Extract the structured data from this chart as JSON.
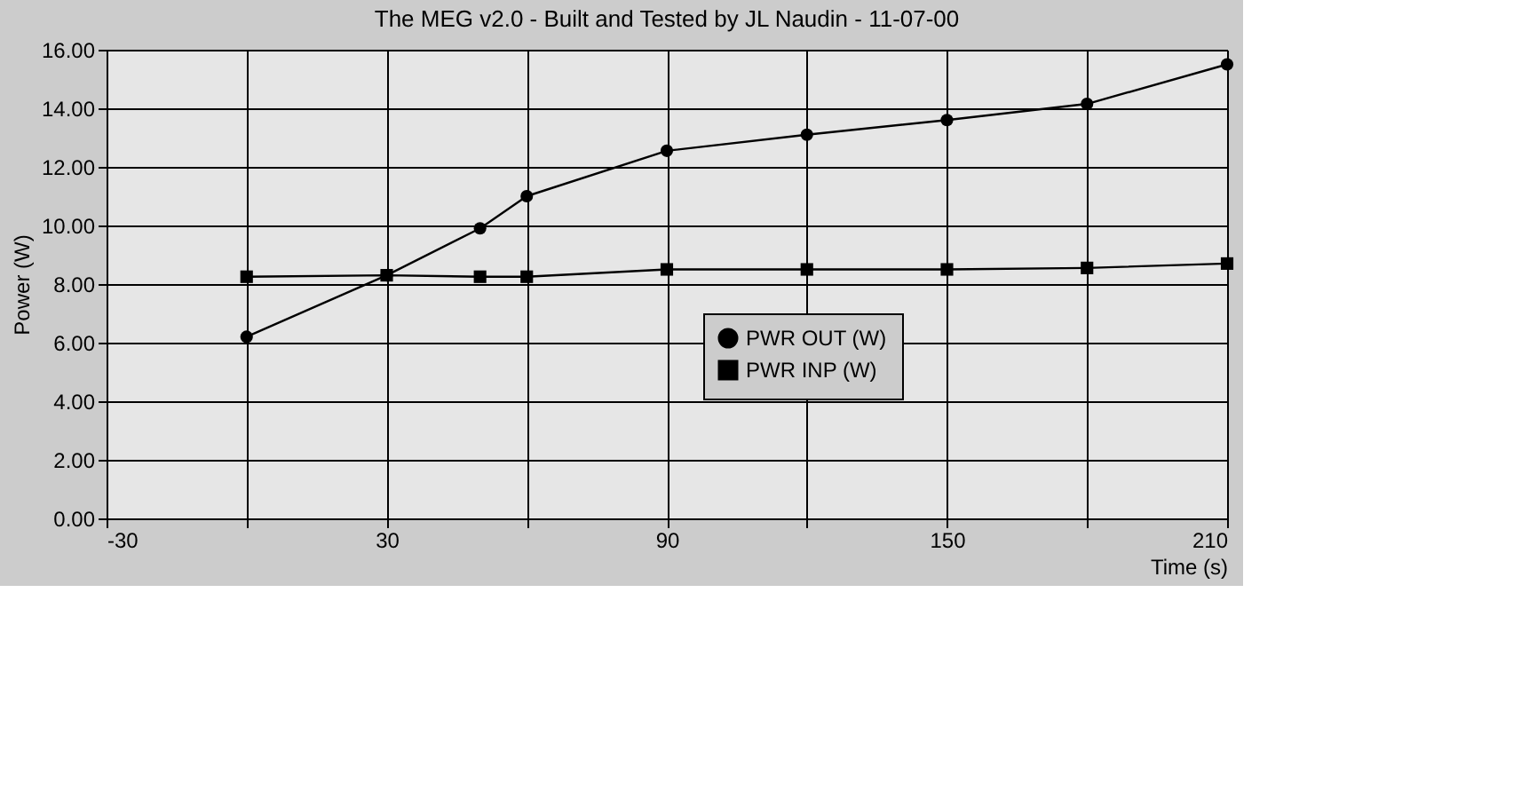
{
  "chart_data": {
    "type": "line",
    "title": "The MEG v2.0 - Built and Tested by JL Naudin - 11-07-00",
    "xlabel": "Time (s)",
    "ylabel": "Power (W)",
    "x": [
      0,
      30,
      50,
      60,
      90,
      120,
      150,
      180,
      210
    ],
    "series": [
      {
        "name": "PWR OUT (W)",
        "color": "#000000",
        "marker": "circle",
        "values": [
          6.2,
          8.3,
          9.9,
          11.0,
          12.55,
          13.1,
          13.6,
          14.15,
          15.5
        ]
      },
      {
        "name": "PWR INP (W)",
        "color": "#000000",
        "marker": "square",
        "values": [
          8.25,
          8.3,
          8.25,
          8.25,
          8.5,
          8.5,
          8.5,
          8.55,
          8.7
        ]
      }
    ],
    "xlim": [
      -30,
      210
    ],
    "xticks": [
      -30,
      {
        "value": 0,
        "label": null
      },
      30,
      {
        "value": 60,
        "label": null
      },
      90,
      {
        "value": 120,
        "label": null
      },
      150,
      {
        "value": 180,
        "label": null
      },
      210
    ],
    "ylim": [
      0,
      16
    ],
    "yticks": [
      {
        "value": 0,
        "label": "0.00"
      },
      {
        "value": 2,
        "label": "2.00"
      },
      {
        "value": 4,
        "label": "4.00"
      },
      {
        "value": 6,
        "label": "6.00"
      },
      {
        "value": 8,
        "label": "8.00"
      },
      {
        "value": 10,
        "label": "10.00"
      },
      {
        "value": 12,
        "label": "12.00"
      },
      {
        "value": 14,
        "label": "14.00"
      },
      {
        "value": 16,
        "label": "16.00"
      }
    ],
    "grid": true,
    "legend": "center",
    "line_style": "solid"
  }
}
